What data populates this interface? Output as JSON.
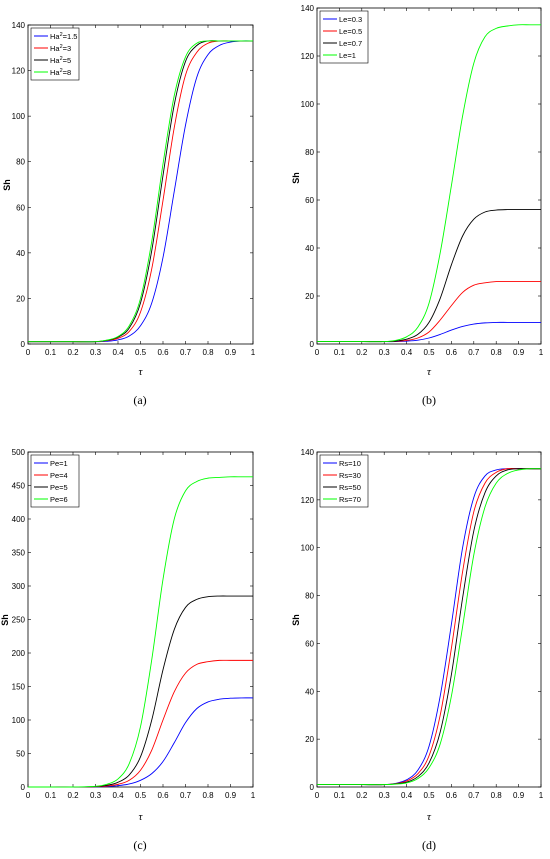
{
  "chart_data": [
    {
      "type": "line",
      "panel_label": "(a)",
      "xlabel": "τ",
      "ylabel": "Sh",
      "xlim": [
        0,
        1
      ],
      "ylim": [
        0,
        140
      ],
      "xticks": [
        "0",
        "0.1",
        "0.2",
        "0.3",
        "0.4",
        "0.5",
        "0.6",
        "0.7",
        "0.8",
        "0.9",
        "1"
      ],
      "yticks": [
        "0",
        "20",
        "40",
        "60",
        "80",
        "100",
        "120",
        "140"
      ],
      "legend_position": "top-left",
      "series": [
        {
          "name": "Ha²=1.5",
          "legend_base": "Ha",
          "legend_sup": "2",
          "legend_rest": "=1.5",
          "color": "#0000ff",
          "x": [
            0,
            0.1,
            0.2,
            0.3,
            0.35,
            0.4,
            0.45,
            0.5,
            0.55,
            0.6,
            0.65,
            0.7,
            0.75,
            0.8,
            0.85,
            0.9,
            0.95,
            1
          ],
          "values": [
            1,
            1,
            1,
            1,
            1.2,
            1.8,
            3.5,
            8,
            18,
            38,
            67,
            96,
            117,
            127,
            131,
            132.5,
            133,
            133
          ]
        },
        {
          "name": "Ha²=3",
          "legend_base": "Ha",
          "legend_sup": "2",
          "legend_rest": "=3",
          "color": "#ff0000",
          "x": [
            0,
            0.1,
            0.2,
            0.3,
            0.35,
            0.4,
            0.45,
            0.5,
            0.55,
            0.6,
            0.65,
            0.7,
            0.75,
            0.8,
            0.85,
            0.9,
            0.95,
            1
          ],
          "values": [
            1,
            1,
            1,
            1,
            1.5,
            2.5,
            5.5,
            14,
            33,
            63,
            95,
            118,
            128,
            132,
            133,
            133,
            133,
            133
          ]
        },
        {
          "name": "Ha²=5",
          "legend_base": "Ha",
          "legend_sup": "2",
          "legend_rest": "=5",
          "color": "#000000",
          "x": [
            0,
            0.1,
            0.2,
            0.3,
            0.35,
            0.4,
            0.45,
            0.5,
            0.55,
            0.6,
            0.65,
            0.7,
            0.75,
            0.8,
            0.85,
            0.9,
            0.95,
            1
          ],
          "values": [
            1,
            1,
            1,
            1,
            1.6,
            3,
            7,
            18,
            41,
            74,
            105,
            124,
            131,
            133,
            133,
            133,
            133,
            133
          ]
        },
        {
          "name": "Ha²=8",
          "legend_base": "Ha",
          "legend_sup": "2",
          "legend_rest": "=8",
          "color": "#00ff00",
          "x": [
            0,
            0.1,
            0.2,
            0.3,
            0.35,
            0.4,
            0.45,
            0.5,
            0.55,
            0.6,
            0.65,
            0.7,
            0.75,
            0.8,
            0.85,
            0.9,
            0.95,
            1
          ],
          "values": [
            1,
            1,
            1,
            1,
            1.7,
            3.3,
            8,
            20,
            45,
            79,
            109,
            126,
            132,
            133,
            133,
            133,
            133,
            133
          ]
        }
      ]
    },
    {
      "type": "line",
      "panel_label": "(b)",
      "xlabel": "τ",
      "ylabel": "Sh",
      "xlim": [
        0,
        1
      ],
      "ylim": [
        0,
        140
      ],
      "xticks": [
        "0",
        "0.1",
        "0.2",
        "0.3",
        "0.4",
        "0.5",
        "0.6",
        "0.7",
        "0.8",
        "0.9",
        "1"
      ],
      "yticks": [
        "0",
        "20",
        "40",
        "60",
        "80",
        "100",
        "120",
        "140"
      ],
      "legend_position": "top-left",
      "series": [
        {
          "name": "Le=0.3",
          "legend_base": "Le=0.3",
          "legend_sup": "",
          "legend_rest": "",
          "color": "#0000ff",
          "x": [
            0,
            0.1,
            0.2,
            0.3,
            0.35,
            0.4,
            0.45,
            0.5,
            0.55,
            0.6,
            0.65,
            0.7,
            0.75,
            0.8,
            0.85,
            0.9,
            0.95,
            1
          ],
          "values": [
            1,
            1,
            1,
            1,
            1,
            1.2,
            1.6,
            2.5,
            4,
            5.8,
            7.3,
            8.3,
            8.8,
            9,
            9,
            9,
            9,
            9
          ]
        },
        {
          "name": "Le=0.5",
          "legend_base": "Le=0.5",
          "legend_sup": "",
          "legend_rest": "",
          "color": "#ff0000",
          "x": [
            0,
            0.1,
            0.2,
            0.3,
            0.35,
            0.4,
            0.45,
            0.5,
            0.55,
            0.6,
            0.65,
            0.7,
            0.75,
            0.8,
            0.85,
            0.9,
            0.95,
            1
          ],
          "values": [
            1,
            1,
            1,
            1,
            1.1,
            1.5,
            2.5,
            5,
            10,
            16,
            21.5,
            24.5,
            25.5,
            26,
            26,
            26,
            26,
            26
          ]
        },
        {
          "name": "Le=0.7",
          "legend_base": "Le=0.7",
          "legend_sup": "",
          "legend_rest": "",
          "color": "#000000",
          "x": [
            0,
            0.1,
            0.2,
            0.3,
            0.35,
            0.4,
            0.45,
            0.5,
            0.55,
            0.6,
            0.65,
            0.7,
            0.75,
            0.8,
            0.85,
            0.9,
            0.95,
            1
          ],
          "values": [
            1,
            1,
            1,
            1,
            1.2,
            2,
            4,
            9,
            19,
            33,
            45,
            52,
            55,
            55.8,
            56,
            56,
            56,
            56
          ]
        },
        {
          "name": "Le=1",
          "legend_base": "Le=1",
          "legend_sup": "",
          "legend_rest": "",
          "color": "#00ff00",
          "x": [
            0,
            0.1,
            0.2,
            0.3,
            0.35,
            0.4,
            0.45,
            0.5,
            0.55,
            0.6,
            0.65,
            0.7,
            0.75,
            0.8,
            0.85,
            0.9,
            0.95,
            1
          ],
          "values": [
            1,
            1,
            1,
            1,
            1.5,
            3,
            7,
            17,
            38,
            66,
            95,
            117,
            128,
            131.5,
            132.5,
            133,
            133,
            133
          ]
        }
      ]
    },
    {
      "type": "line",
      "panel_label": "(c)",
      "xlabel": "τ",
      "ylabel": "Sh",
      "xlim": [
        0,
        1
      ],
      "ylim": [
        0,
        500
      ],
      "xticks": [
        "0",
        "0.1",
        "0.2",
        "0.3",
        "0.4",
        "0.5",
        "0.6",
        "0.7",
        "0.8",
        "0.9",
        "1"
      ],
      "yticks": [
        "0",
        "50",
        "100",
        "150",
        "200",
        "250",
        "300",
        "350",
        "400",
        "450",
        "500"
      ],
      "legend_position": "top-left",
      "series": [
        {
          "name": "Pe=1",
          "legend_base": "Pe=1",
          "legend_sup": "",
          "legend_rest": "",
          "color": "#0000ff",
          "x": [
            0,
            0.1,
            0.2,
            0.3,
            0.35,
            0.4,
            0.45,
            0.5,
            0.55,
            0.6,
            0.65,
            0.7,
            0.75,
            0.8,
            0.85,
            0.9,
            0.95,
            1
          ],
          "values": [
            0,
            0,
            0,
            0.3,
            0.8,
            2,
            4.5,
            10,
            20,
            38,
            66,
            96,
            117,
            127,
            131,
            132.5,
            133,
            133
          ]
        },
        {
          "name": "Pe=4",
          "legend_base": "Pe=4",
          "legend_sup": "",
          "legend_rest": "",
          "color": "#ff0000",
          "x": [
            0,
            0.1,
            0.2,
            0.3,
            0.35,
            0.4,
            0.45,
            0.5,
            0.55,
            0.6,
            0.65,
            0.7,
            0.75,
            0.8,
            0.85,
            0.9,
            0.95,
            1
          ],
          "values": [
            0,
            0,
            0,
            0.5,
            1.5,
            4,
            10,
            25,
            55,
            100,
            142,
            170,
            183,
            187,
            189,
            189,
            189,
            189
          ]
        },
        {
          "name": "Pe=5",
          "legend_base": "Pe=5",
          "legend_sup": "",
          "legend_rest": "",
          "color": "#000000",
          "x": [
            0,
            0.1,
            0.2,
            0.3,
            0.35,
            0.4,
            0.45,
            0.5,
            0.55,
            0.6,
            0.65,
            0.7,
            0.75,
            0.8,
            0.85,
            0.9,
            0.95,
            1
          ],
          "values": [
            0,
            0,
            0,
            0.7,
            2.5,
            7,
            18,
            45,
            100,
            175,
            235,
            268,
            280,
            284,
            285,
            285,
            285,
            285
          ]
        },
        {
          "name": "Pe=6",
          "legend_base": "Pe=6",
          "legend_sup": "",
          "legend_rest": "",
          "color": "#00ff00",
          "x": [
            0,
            0.1,
            0.2,
            0.3,
            0.35,
            0.4,
            0.45,
            0.5,
            0.55,
            0.6,
            0.65,
            0.7,
            0.75,
            0.8,
            0.85,
            0.9,
            0.95,
            1
          ],
          "values": [
            0,
            0,
            0,
            1,
            4,
            12,
            35,
            90,
            190,
            310,
            400,
            442,
            456,
            461,
            462,
            463,
            463,
            463
          ]
        }
      ]
    },
    {
      "type": "line",
      "panel_label": "(d)",
      "xlabel": "τ",
      "ylabel": "Sh",
      "xlim": [
        0,
        1
      ],
      "ylim": [
        0,
        140
      ],
      "xticks": [
        "0",
        "0.1",
        "0.2",
        "0.3",
        "0.4",
        "0.5",
        "0.6",
        "0.7",
        "0.8",
        "0.9",
        "1"
      ],
      "yticks": [
        "0",
        "20",
        "40",
        "60",
        "80",
        "100",
        "120",
        "140"
      ],
      "legend_position": "top-left",
      "series": [
        {
          "name": "Rs=10",
          "legend_base": "Rs=10",
          "legend_sup": "",
          "legend_rest": "",
          "color": "#0000ff",
          "x": [
            0,
            0.1,
            0.2,
            0.3,
            0.35,
            0.4,
            0.45,
            0.5,
            0.55,
            0.6,
            0.65,
            0.7,
            0.75,
            0.8,
            0.85,
            0.9,
            0.95,
            1
          ],
          "values": [
            1,
            1,
            1,
            1,
            1.5,
            3,
            7,
            17,
            38,
            68,
            100,
            121,
            130,
            132.5,
            133,
            133,
            133,
            133
          ]
        },
        {
          "name": "Rs=30",
          "legend_base": "Rs=30",
          "legend_sup": "",
          "legend_rest": "",
          "color": "#ff0000",
          "x": [
            0,
            0.1,
            0.2,
            0.3,
            0.35,
            0.4,
            0.45,
            0.5,
            0.55,
            0.6,
            0.65,
            0.7,
            0.75,
            0.8,
            0.85,
            0.9,
            0.95,
            1
          ],
          "values": [
            1,
            1,
            1,
            1,
            1.4,
            2.5,
            5.5,
            13,
            30,
            58,
            90,
            115,
            127,
            131.5,
            133,
            133,
            133,
            133
          ]
        },
        {
          "name": "Rs=50",
          "legend_base": "Rs=50",
          "legend_sup": "",
          "legend_rest": "",
          "color": "#000000",
          "x": [
            0,
            0.1,
            0.2,
            0.3,
            0.35,
            0.4,
            0.45,
            0.5,
            0.55,
            0.6,
            0.65,
            0.7,
            0.75,
            0.8,
            0.85,
            0.9,
            0.95,
            1
          ],
          "values": [
            1,
            1,
            1,
            1,
            1.3,
            2,
            4.3,
            10,
            23,
            47,
            79,
            107,
            123,
            130,
            132.5,
            133,
            133,
            133
          ]
        },
        {
          "name": "Rs=70",
          "legend_base": "Rs=70",
          "legend_sup": "",
          "legend_rest": "",
          "color": "#00ff00",
          "x": [
            0,
            0.1,
            0.2,
            0.3,
            0.35,
            0.4,
            0.45,
            0.5,
            0.55,
            0.6,
            0.65,
            0.7,
            0.75,
            0.8,
            0.85,
            0.9,
            0.95,
            1
          ],
          "values": [
            1,
            1,
            1,
            1,
            1.2,
            1.7,
            3.5,
            8,
            18,
            38,
            67,
            97,
            117,
            127,
            131,
            132.5,
            133,
            133
          ]
        }
      ]
    }
  ]
}
